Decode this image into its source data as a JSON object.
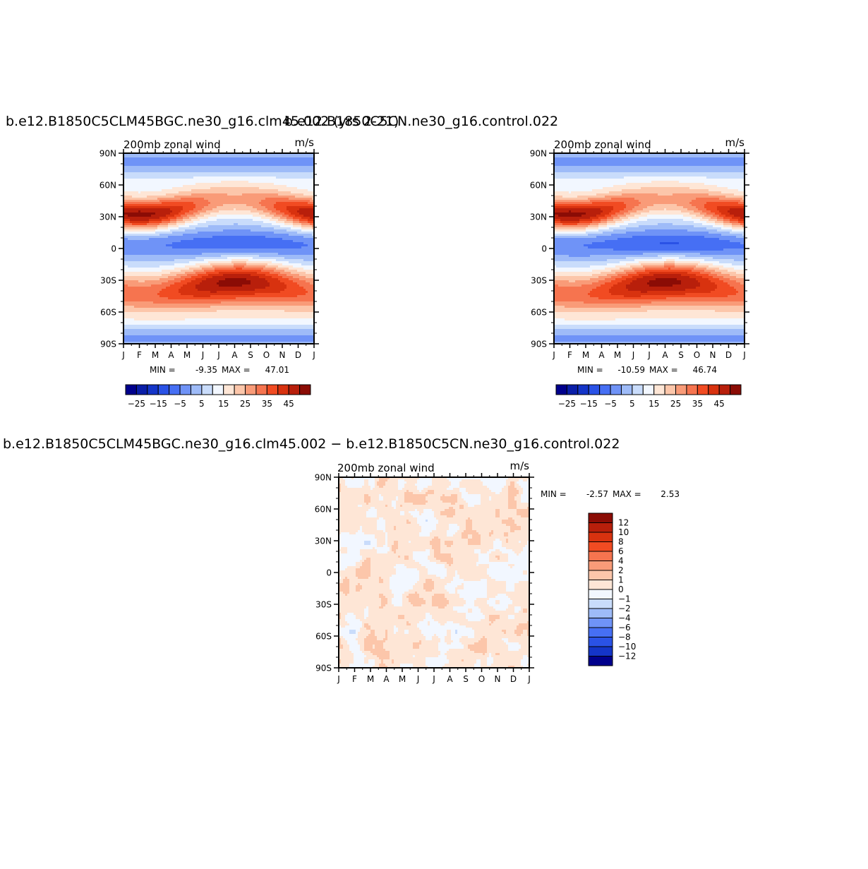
{
  "panels": [
    {
      "id": "top-left",
      "title": "b.e12.B1850C5CLM45BGC.ne30_g16.clm45.002 (yrs 2-21)",
      "chart_data": {
        "type": "heatmap",
        "subtitle": "200mb zonal wind",
        "units": "m/s",
        "x": [
          "J",
          "F",
          "M",
          "A",
          "M",
          "J",
          "J",
          "A",
          "S",
          "O",
          "N",
          "D",
          "J"
        ],
        "y_ticks": [
          "90N",
          "60N",
          "30N",
          "0",
          "30S",
          "60S",
          "90S"
        ],
        "min": "-9.35",
        "max": "47.01",
        "min_label": "MIN =",
        "max_label": "MAX =",
        "colorbar": {
          "levels": [
            -30,
            -25,
            -20,
            -15,
            -10,
            -5,
            0,
            5,
            10,
            15,
            20,
            25,
            30,
            35,
            40,
            45
          ],
          "tick_labels": [
            "-25",
            "-15",
            "-5",
            "5",
            "15",
            "25",
            "35",
            "45"
          ],
          "colors": [
            "#00008c",
            "#0a1ea8",
            "#1435c8",
            "#2a52e6",
            "#466ff4",
            "#6f93f7",
            "#9ebbf8",
            "#c9dcfb",
            "#f2f7ff",
            "#fee6d6",
            "#fcc6aa",
            "#f99b78",
            "#f6744f",
            "#f14b22",
            "#d8320f",
            "#b81f0b",
            "#8b0c05"
          ]
        },
        "field_model": {
          "subtropical_jet_nh": {
            "lat": 30,
            "amp_jan": 47,
            "amp_jul": 20,
            "peak_month": 1.1
          },
          "subtropical_jet_sh": {
            "lat": -30,
            "amp_jul": 45,
            "amp_jan": 24
          },
          "equatorial_easterly": {
            "amp": -9,
            "peak_month": 7.5
          }
        }
      }
    },
    {
      "id": "top-right",
      "title": "b.e12.B1850C5CN.ne30_g16.control.022",
      "chart_data": {
        "type": "heatmap",
        "subtitle": "200mb zonal wind",
        "units": "m/s",
        "x": [
          "J",
          "F",
          "M",
          "A",
          "M",
          "J",
          "J",
          "A",
          "S",
          "O",
          "N",
          "D",
          "J"
        ],
        "y_ticks": [
          "90N",
          "60N",
          "30N",
          "0",
          "30S",
          "60S",
          "90S"
        ],
        "min": "-10.59",
        "max": "46.74",
        "min_label": "MIN =",
        "max_label": "MAX =",
        "colorbar": {
          "levels": [
            -30,
            -25,
            -20,
            -15,
            -10,
            -5,
            0,
            5,
            10,
            15,
            20,
            25,
            30,
            35,
            40,
            45
          ],
          "tick_labels": [
            "-25",
            "-15",
            "-5",
            "5",
            "15",
            "25",
            "35",
            "45"
          ],
          "colors": [
            "#00008c",
            "#0a1ea8",
            "#1435c8",
            "#2a52e6",
            "#466ff4",
            "#6f93f7",
            "#9ebbf8",
            "#c9dcfb",
            "#f2f7ff",
            "#fee6d6",
            "#fcc6aa",
            "#f99b78",
            "#f6744f",
            "#f14b22",
            "#d8320f",
            "#b81f0b",
            "#8b0c05"
          ]
        }
      }
    },
    {
      "id": "bottom-diff",
      "title": "b.e12.B1850C5CLM45BGC.ne30_g16.clm45.002 − b.e12.B1850C5CN.ne30_g16.control.022",
      "chart_data": {
        "type": "heatmap",
        "subtitle": "200mb zonal wind",
        "units": "m/s",
        "x": [
          "J",
          "F",
          "M",
          "A",
          "M",
          "J",
          "J",
          "A",
          "S",
          "O",
          "N",
          "D",
          "J"
        ],
        "y_ticks": [
          "90N",
          "60N",
          "30N",
          "0",
          "30S",
          "60S",
          "90S"
        ],
        "min": "-2.57",
        "max": "2.53",
        "min_label": "MIN =",
        "max_label": "MAX =",
        "colorbar": {
          "levels": [
            -12,
            -10,
            -8,
            -6,
            -4,
            -2,
            -1,
            0,
            1,
            2,
            4,
            6,
            8,
            10,
            12
          ],
          "tick_labels": [
            "12",
            "10",
            "8",
            "6",
            "4",
            "2",
            "1",
            "0",
            "-1",
            "-2",
            "-4",
            "-6",
            "-8",
            "-10",
            "-12"
          ],
          "colors": [
            "#8b0c05",
            "#b81f0b",
            "#d8320f",
            "#f14b22",
            "#f6744f",
            "#f99b78",
            "#fcc6aa",
            "#fee6d6",
            "#f2f7ff",
            "#c9dcfb",
            "#9ebbf8",
            "#6f93f7",
            "#466ff4",
            "#2a52e6",
            "#1435c8",
            "#00008c"
          ]
        }
      }
    }
  ]
}
